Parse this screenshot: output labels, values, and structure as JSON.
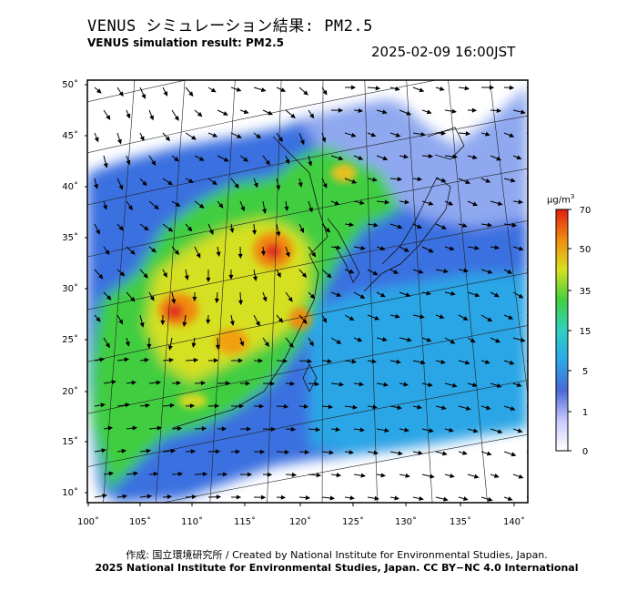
{
  "header": {
    "title_jp": "VENUS シミュレーション結果: PM2.5",
    "title_en": "VENUS simulation result: PM2.5",
    "timestamp": "2025-02-09 16:00JST"
  },
  "map": {
    "lat_ticks": [
      "10˚",
      "15˚",
      "20˚",
      "25˚",
      "30˚",
      "35˚",
      "40˚",
      "45˚",
      "50˚"
    ],
    "lon_ticks": [
      "100˚",
      "105˚",
      "110˚",
      "115˚",
      "120˚",
      "125˚",
      "130˚",
      "135˚",
      "140˚"
    ]
  },
  "colorbar": {
    "unit": "µg/m",
    "unit_sup": "3",
    "tick_labels": [
      "0",
      "1",
      "5",
      "15",
      "35",
      "50",
      "70"
    ],
    "colors": [
      "#ffffff",
      "#c8c8ff",
      "#4a6ad8",
      "#2aa8e8",
      "#30d0c0",
      "#40d040",
      "#d8e020",
      "#f08c10",
      "#e02010"
    ]
  },
  "footer": {
    "credit": "作成: 国立環境研究所 / Created by National Institute for Environmental Studies, Japan.",
    "license": "2025 National Institute for Environmental Studies, Japan. CC BY−NC 4.0 International"
  }
}
